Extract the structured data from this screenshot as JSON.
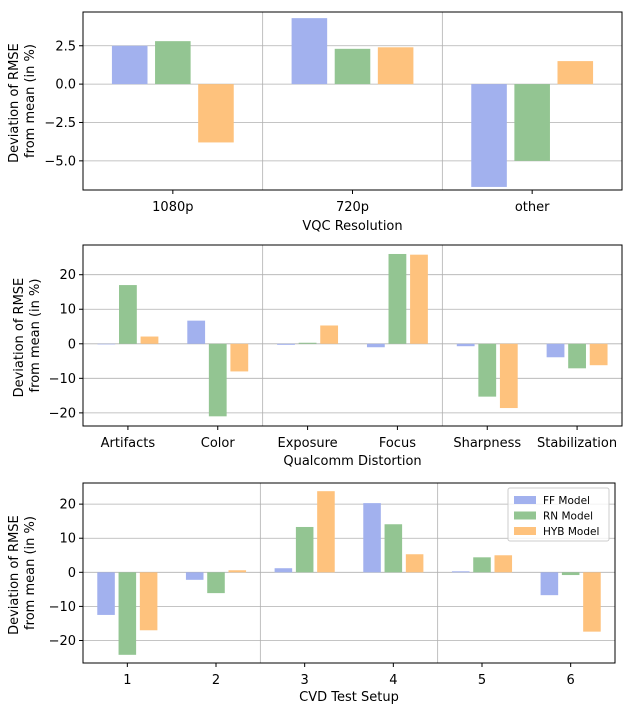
{
  "colors": {
    "ff": "#a2b1ee",
    "rn": "#93c592",
    "hyb": "#fec27d",
    "grid": "#b0b0b0",
    "frame": "#000000"
  },
  "chart_data": [
    {
      "type": "bar",
      "categories": [
        "1080p",
        "720p",
        "other"
      ],
      "series": [
        {
          "name": "FF Model",
          "values": [
            2.5,
            4.3,
            -6.7
          ]
        },
        {
          "name": "RN Model",
          "values": [
            2.8,
            2.3,
            -5.0
          ]
        },
        {
          "name": "HYB Model",
          "values": [
            -3.8,
            2.4,
            1.5
          ]
        }
      ],
      "xlabel": "VQC Resolution",
      "ylabel": [
        "Deviation of RMSE",
        "from mean (in %)"
      ],
      "ylim": [
        -6.9,
        4.7
      ],
      "yticks": [
        -5.0,
        -2.5,
        0.0,
        2.5
      ],
      "ytick_labels": [
        "−5.0",
        "−2.5",
        "0.0",
        "2.5"
      ],
      "group_separators_after": [
        0,
        1
      ],
      "grid": "horizontal",
      "legend": null
    },
    {
      "type": "bar",
      "categories": [
        "Artifacts",
        "Color",
        "Exposure",
        "Focus",
        "Sharpness",
        "Stabilization"
      ],
      "series": [
        {
          "name": "FF Model",
          "values": [
            0,
            6.7,
            -0.3,
            -1.0,
            -0.7,
            -3.9
          ]
        },
        {
          "name": "RN Model",
          "values": [
            17.0,
            -21.0,
            0.3,
            26.0,
            -15.3,
            -7.1
          ]
        },
        {
          "name": "HYB Model",
          "values": [
            2.1,
            -8.0,
            5.3,
            25.8,
            -18.6,
            -6.2
          ]
        }
      ],
      "xlabel": "Qualcomm Distortion",
      "ylabel": [
        "Deviation of RMSE",
        "from mean (in %)"
      ],
      "ylim": [
        -23.8,
        28.6
      ],
      "yticks": [
        -20,
        -10,
        0,
        10,
        20
      ],
      "ytick_labels": [
        "−20",
        "−10",
        "0",
        "10",
        "20"
      ],
      "group_separators_after": [
        1,
        3
      ],
      "grid": "horizontal",
      "legend": null
    },
    {
      "type": "bar",
      "categories": [
        "1",
        "2",
        "3",
        "4",
        "5",
        "6"
      ],
      "series": [
        {
          "name": "FF Model",
          "values": [
            -12.5,
            -2.2,
            1.2,
            20.3,
            0.3,
            -6.7
          ]
        },
        {
          "name": "RN Model",
          "values": [
            -24.2,
            -6.1,
            13.3,
            14.1,
            4.4,
            -0.8
          ]
        },
        {
          "name": "HYB Model",
          "values": [
            -17.0,
            0.6,
            23.8,
            5.3,
            5.0,
            -17.4
          ]
        }
      ],
      "xlabel": "CVD Test Setup",
      "ylabel": [
        "Deviation of RMSE",
        "from mean (in %)"
      ],
      "ylim": [
        -26.6,
        26.2
      ],
      "yticks": [
        -20,
        -10,
        0,
        10,
        20
      ],
      "ytick_labels": [
        "−20",
        "−10",
        "0",
        "10",
        "20"
      ],
      "group_separators_after": [
        1,
        3
      ],
      "grid": "horizontal",
      "legend": "top-right"
    }
  ]
}
